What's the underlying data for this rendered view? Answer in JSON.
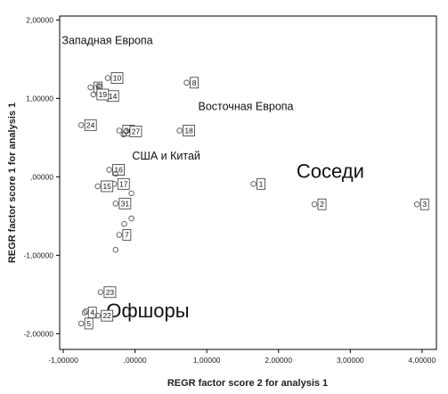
{
  "chart_data": {
    "type": "scatter",
    "xlabel": "REGR factor score   2 for analysis 1",
    "ylabel": "REGR factor score   1 for analysis 1",
    "xlim": [
      -1.05,
      4.2
    ],
    "ylim": [
      -2.2,
      2.05
    ],
    "x_ticks": [
      {
        "v": -1.0,
        "label": "-1,00000"
      },
      {
        "v": 0.0,
        "label": ",00000"
      },
      {
        "v": 1.0,
        "label": "1,00000"
      },
      {
        "v": 2.0,
        "label": "2,00000"
      },
      {
        "v": 3.0,
        "label": "3,00000"
      },
      {
        "v": 4.0,
        "label": "4,00000"
      }
    ],
    "y_ticks": [
      {
        "v": 2.0,
        "label": "2,00000"
      },
      {
        "v": 1.0,
        "label": "1,00000"
      },
      {
        "v": 0.0,
        "label": ",00000"
      },
      {
        "v": -1.0,
        "label": "-1,00000"
      },
      {
        "v": -2.0,
        "label": "-2,00000"
      }
    ],
    "grid": false,
    "points": [
      {
        "x": -0.38,
        "y": 1.26,
        "label": "10"
      },
      {
        "x": -0.62,
        "y": 1.14,
        "label": "6"
      },
      {
        "x": -0.51,
        "y": 1.16,
        "label": ""
      },
      {
        "x": -0.49,
        "y": 1.15,
        "label": ""
      },
      {
        "x": -0.44,
        "y": 1.03,
        "label": "14"
      },
      {
        "x": -0.58,
        "y": 1.05,
        "label": "19"
      },
      {
        "x": -0.75,
        "y": 0.66,
        "label": "24"
      },
      {
        "x": -0.22,
        "y": 0.59,
        "label": "30"
      },
      {
        "x": -0.16,
        "y": 0.54,
        "label": ""
      },
      {
        "x": -0.12,
        "y": 0.58,
        "label": "27"
      },
      {
        "x": 0.72,
        "y": 1.2,
        "label": "8"
      },
      {
        "x": 0.62,
        "y": 0.59,
        "label": "18"
      },
      {
        "x": -0.36,
        "y": 0.09,
        "label": "16"
      },
      {
        "x": -0.27,
        "y": 0.04,
        "label": ""
      },
      {
        "x": -0.29,
        "y": -0.09,
        "label": "17"
      },
      {
        "x": -0.52,
        "y": -0.12,
        "label": "15"
      },
      {
        "x": -0.05,
        "y": -0.21,
        "label": ""
      },
      {
        "x": -0.27,
        "y": -0.34,
        "label": "31"
      },
      {
        "x": -0.05,
        "y": -0.53,
        "label": ""
      },
      {
        "x": -0.15,
        "y": -0.6,
        "label": ""
      },
      {
        "x": -0.22,
        "y": -0.74,
        "label": "7"
      },
      {
        "x": -0.27,
        "y": -0.93,
        "label": ""
      },
      {
        "x": 1.65,
        "y": -0.09,
        "label": "1"
      },
      {
        "x": 2.5,
        "y": -0.35,
        "label": "2"
      },
      {
        "x": 3.93,
        "y": -0.35,
        "label": "3"
      },
      {
        "x": -0.48,
        "y": -1.47,
        "label": "23"
      },
      {
        "x": -0.7,
        "y": -1.73,
        "label": "4"
      },
      {
        "x": -0.68,
        "y": -1.71,
        "label": ""
      },
      {
        "x": -0.52,
        "y": -1.77,
        "label": "22"
      },
      {
        "x": -0.75,
        "y": -1.87,
        "label": "5"
      }
    ],
    "annotations": [
      {
        "text": "Западная Европа",
        "x": -1.02,
        "y": 1.69,
        "size": "small"
      },
      {
        "text": "Восточная Европа",
        "x": 0.88,
        "y": 0.85,
        "size": "small"
      },
      {
        "text": "США и Китай",
        "x": -0.04,
        "y": 0.22,
        "size": "small"
      },
      {
        "text": "Соседи",
        "x": 2.25,
        "y": -0.01,
        "size": "large"
      },
      {
        "text": "Офшоры",
        "x": -0.4,
        "y": -1.79,
        "size": "large"
      }
    ],
    "colors": {
      "marker_stroke": "#555555",
      "frame": "#000000"
    }
  }
}
